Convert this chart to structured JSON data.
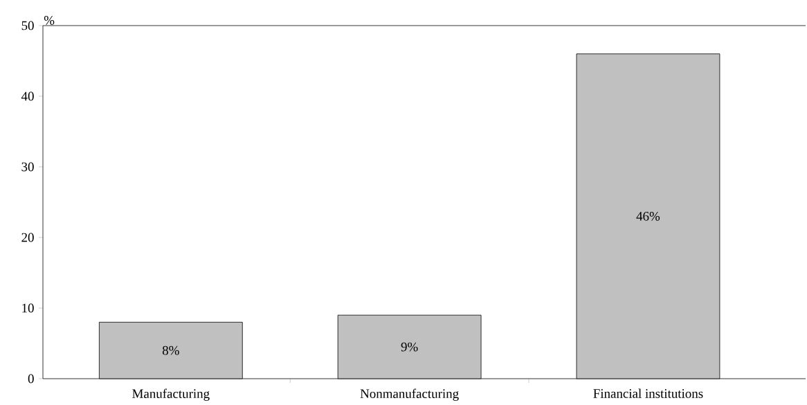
{
  "chart_data": {
    "type": "bar",
    "ylabel": "%",
    "categories": [
      "Manufacturing",
      "Nonmanufacturing",
      "Financial institutions"
    ],
    "values": [
      8,
      9,
      46
    ],
    "value_labels": [
      "8%",
      "9%",
      "46%"
    ],
    "color": "#c0c0c0",
    "ylim": [
      0,
      50
    ],
    "yticks": [
      0,
      10,
      20,
      30,
      40,
      50
    ]
  }
}
